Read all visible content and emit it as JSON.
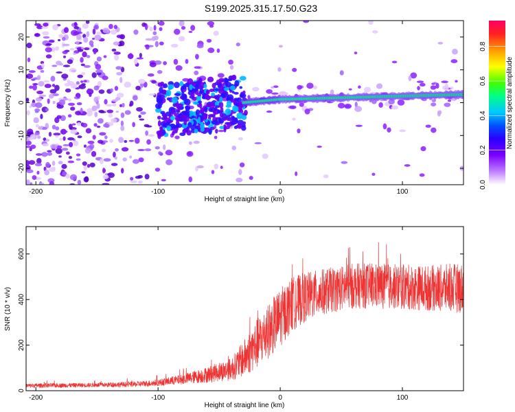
{
  "title": "S199.2025.315.17.50.G23",
  "chart_data": [
    {
      "type": "heatmap",
      "name": "spectrogram",
      "title": "S199.2025.315.17.50.G23",
      "xlabel": "Height of straight line (km)",
      "ylabel": "Frequency (Hz)",
      "xlim": [
        -208,
        150
      ],
      "ylim": [
        -25,
        25
      ],
      "xticks": [
        -200,
        -100,
        0,
        100
      ],
      "yticks": [
        -20,
        -10,
        0,
        10,
        20
      ],
      "colorbar": {
        "label": "Normalized spectral amplitude",
        "range": [
          0,
          0.95
        ],
        "ticks": [
          0.0,
          0.2,
          0.4,
          0.6,
          0.8
        ],
        "colormap": [
          "#ffffff",
          "#8a00ff",
          "#2200ff",
          "#00c8ff",
          "#00ff66",
          "#ffff00",
          "#ff8800",
          "#ff0040"
        ]
      },
      "ridge": {
        "description": "dominant frequency line",
        "x": [
          -30,
          0,
          50,
          100,
          150
        ],
        "y": [
          0,
          1,
          1.5,
          2,
          2.5
        ]
      }
    },
    {
      "type": "line",
      "name": "snr",
      "xlabel": "Height of straight line (km)",
      "ylabel": "SNR (10 * v/v)",
      "xlim": [
        -208,
        150
      ],
      "ylim": [
        0,
        720
      ],
      "xticks": [
        -200,
        -100,
        0,
        100
      ],
      "yticks": [
        0,
        200,
        400,
        600
      ],
      "color": "#ee3333",
      "envelope": {
        "x": [
          -208,
          -150,
          -120,
          -100,
          -80,
          -60,
          -40,
          -30,
          -20,
          -10,
          0,
          10,
          20,
          40,
          60,
          80,
          100,
          120,
          150
        ],
        "mean": [
          22,
          25,
          28,
          35,
          50,
          70,
          95,
          140,
          200,
          260,
          320,
          380,
          410,
          440,
          460,
          460,
          455,
          450,
          450
        ],
        "spread": [
          10,
          10,
          12,
          15,
          22,
          35,
          50,
          80,
          110,
          120,
          130,
          120,
          110,
          100,
          100,
          100,
          100,
          100,
          110
        ]
      }
    }
  ]
}
